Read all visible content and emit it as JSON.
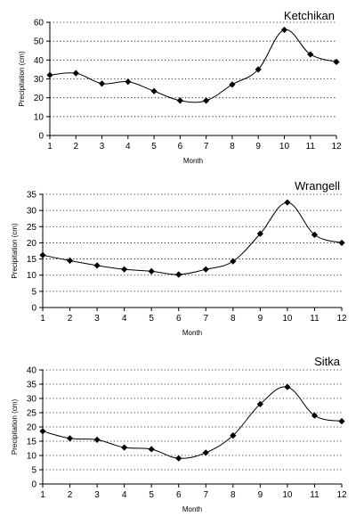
{
  "chart_data": [
    {
      "type": "line",
      "title": "Ketchikan",
      "xlabel": "Month",
      "ylabel": "Precipitation (cm)",
      "x": [
        1,
        2,
        3,
        4,
        5,
        6,
        7,
        8,
        9,
        10,
        11,
        12
      ],
      "values": [
        32,
        33,
        27.5,
        28.5,
        23.5,
        18.5,
        18.5,
        27,
        35,
        56,
        43,
        39
      ],
      "ylim": [
        0,
        60
      ],
      "yticks": [
        0,
        10,
        20,
        30,
        40,
        50,
        60
      ],
      "grid": "dotted horizontal"
    },
    {
      "type": "line",
      "title": "Wrangell",
      "xlabel": "Month",
      "ylabel": "Precipitation (cm)",
      "x": [
        1,
        2,
        3,
        4,
        5,
        6,
        7,
        8,
        9,
        10,
        11,
        12
      ],
      "values": [
        16.2,
        14.5,
        13,
        11.8,
        11.2,
        10.2,
        11.8,
        14.3,
        22.8,
        32.5,
        22.5,
        20
      ],
      "ylim": [
        0,
        35
      ],
      "yticks": [
        0,
        5,
        10,
        15,
        20,
        25,
        30,
        35
      ],
      "grid": "dotted horizontal"
    },
    {
      "type": "line",
      "title": "Sitka",
      "xlabel": "Month",
      "ylabel": "Precipitation (cm)",
      "x": [
        1,
        2,
        3,
        4,
        5,
        6,
        7,
        8,
        9,
        10,
        11,
        12
      ],
      "values": [
        18.5,
        16,
        15.5,
        12.8,
        12.2,
        9,
        11,
        17,
        28,
        34,
        24,
        22
      ],
      "ylim": [
        0,
        40
      ],
      "yticks": [
        0,
        5,
        10,
        15,
        20,
        25,
        30,
        35,
        40
      ],
      "grid": "dotted horizontal"
    }
  ]
}
